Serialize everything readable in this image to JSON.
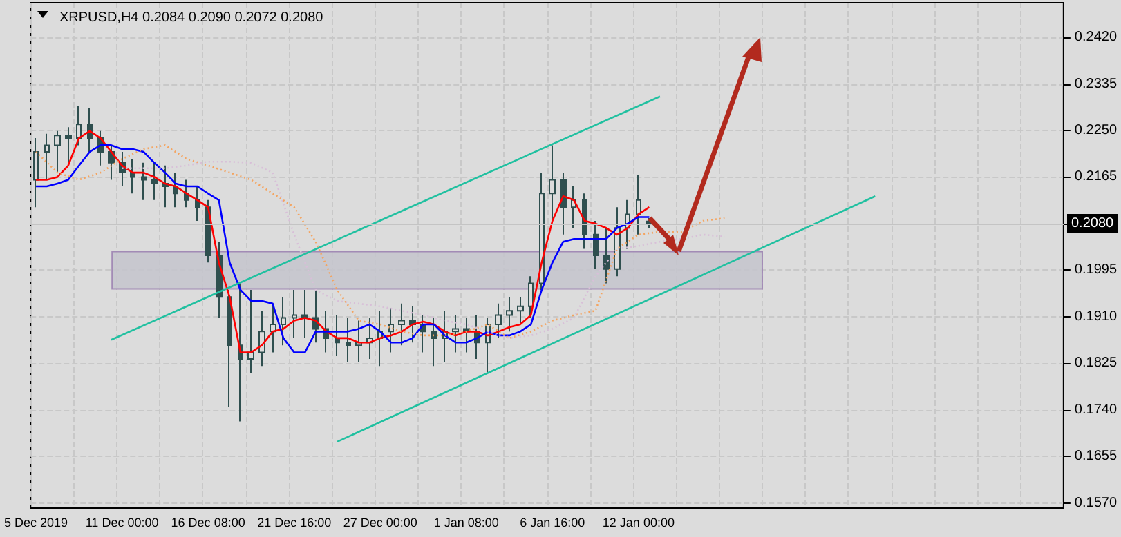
{
  "chart_data": {
    "type": "candlestick",
    "title": "XRPUSD,H4 0.2084 0.2090 0.2072 0.2080",
    "categories": [
      "5 Dec 2019",
      null,
      null,
      null,
      null,
      null,
      null,
      null,
      "11 Dec 00:00",
      null,
      null,
      null,
      null,
      null,
      null,
      null,
      "16 Dec 08:00",
      null,
      null,
      null,
      null,
      null,
      null,
      null,
      "21 Dec 16:00",
      null,
      null,
      null,
      null,
      null,
      null,
      null,
      "27 Dec 00:00",
      null,
      null,
      null,
      null,
      null,
      null,
      null,
      "1 Jan 08:00",
      null,
      null,
      null,
      null,
      null,
      null,
      null,
      "6 Jan 16:00",
      null,
      null,
      null,
      null,
      null,
      null,
      null,
      "12 Jan 00:00",
      null,
      null,
      null,
      null,
      null,
      null,
      null,
      null,
      null,
      null,
      null,
      null,
      null,
      null,
      null,
      null,
      null,
      null,
      null,
      null,
      null,
      null,
      null,
      null,
      null,
      null,
      null,
      null,
      null,
      null,
      null,
      null,
      null,
      null,
      null,
      null,
      null,
      null,
      null
    ],
    "series": [
      {
        "color": "#2f4f4f",
        "ohlc": [
          [
            0.216,
            0.2236,
            0.211,
            0.2211
          ],
          [
            0.2211,
            0.2244,
            0.216,
            0.2223
          ],
          [
            0.2223,
            0.2249,
            0.2173,
            0.2241
          ],
          [
            0.2241,
            0.2256,
            0.2186,
            0.2236
          ],
          [
            0.2236,
            0.2294,
            0.2223,
            0.2261
          ],
          [
            0.2261,
            0.2291,
            0.2211,
            0.2236
          ],
          [
            0.2236,
            0.2249,
            0.2186,
            0.2211
          ],
          [
            0.2211,
            0.2223,
            0.216,
            0.2191
          ],
          [
            0.2191,
            0.2211,
            0.2148,
            0.2173
          ],
          [
            0.2173,
            0.2198,
            0.2135,
            0.2165
          ],
          [
            0.2165,
            0.2191,
            0.2123,
            0.216
          ],
          [
            0.216,
            0.2191,
            0.2123,
            0.2153
          ],
          [
            0.2153,
            0.2186,
            0.211,
            0.2148
          ],
          [
            0.2148,
            0.2173,
            0.211,
            0.2135
          ],
          [
            0.2135,
            0.216,
            0.211,
            0.2123
          ],
          [
            0.2123,
            0.2148,
            0.2085,
            0.211
          ],
          [
            0.211,
            0.2123,
            0.2009,
            0.2022
          ],
          [
            0.2022,
            0.2047,
            0.1908,
            0.1946
          ],
          [
            0.1946,
            0.1959,
            0.1745,
            0.1858
          ],
          [
            0.1858,
            0.1971,
            0.1719,
            0.1833
          ],
          [
            0.1833,
            0.1959,
            0.1808,
            0.1845
          ],
          [
            0.1845,
            0.1921,
            0.182,
            0.1883
          ],
          [
            0.1883,
            0.1934,
            0.1845,
            0.1896
          ],
          [
            0.1896,
            0.1946,
            0.1858,
            0.1908
          ],
          [
            0.1908,
            0.1959,
            0.1871,
            0.1913
          ],
          [
            0.1913,
            0.1959,
            0.1871,
            0.1908
          ],
          [
            0.1908,
            0.1959,
            0.1863,
            0.1888
          ],
          [
            0.1888,
            0.1921,
            0.1845,
            0.1871
          ],
          [
            0.1871,
            0.1913,
            0.1838,
            0.1863
          ],
          [
            0.1863,
            0.1908,
            0.1828,
            0.1858
          ],
          [
            0.1858,
            0.1903,
            0.1828,
            0.1863
          ],
          [
            0.1863,
            0.1908,
            0.1833,
            0.1871
          ],
          [
            0.1871,
            0.1921,
            0.182,
            0.1883
          ],
          [
            0.1883,
            0.1926,
            0.1845,
            0.1896
          ],
          [
            0.1896,
            0.1934,
            0.1858,
            0.1903
          ],
          [
            0.1903,
            0.1929,
            0.1863,
            0.1896
          ],
          [
            0.1896,
            0.1913,
            0.1845,
            0.1883
          ],
          [
            0.1883,
            0.1908,
            0.182,
            0.1871
          ],
          [
            0.1871,
            0.1921,
            0.1828,
            0.1883
          ],
          [
            0.1883,
            0.1913,
            0.1845,
            0.1888
          ],
          [
            0.1888,
            0.1908,
            0.1845,
            0.1883
          ],
          [
            0.1883,
            0.1913,
            0.1833,
            0.1863
          ],
          [
            0.1863,
            0.1908,
            0.1808,
            0.1896
          ],
          [
            0.1896,
            0.1934,
            0.1871,
            0.1913
          ],
          [
            0.1913,
            0.1946,
            0.1883,
            0.1921
          ],
          [
            0.1921,
            0.1946,
            0.1896,
            0.1929
          ],
          [
            0.1929,
            0.1984,
            0.1908,
            0.1971
          ],
          [
            0.1971,
            0.2173,
            0.1959,
            0.2135
          ],
          [
            0.2135,
            0.2223,
            0.2085,
            0.216
          ],
          [
            0.216,
            0.2173,
            0.206,
            0.211
          ],
          [
            0.211,
            0.2148,
            0.2072,
            0.2123
          ],
          [
            0.2123,
            0.2135,
            0.2034,
            0.206
          ],
          [
            0.206,
            0.2085,
            0.1997,
            0.2022
          ],
          [
            0.2022,
            0.2072,
            0.1971,
            0.1997
          ],
          [
            0.1997,
            0.211,
            0.1984,
            0.2072
          ],
          [
            0.2072,
            0.2123,
            0.2034,
            0.2097
          ],
          [
            0.2097,
            0.2168,
            0.206,
            0.2123
          ],
          [
            0.2084,
            0.209,
            0.2072,
            0.208
          ],
          null,
          null,
          null,
          null,
          null,
          null,
          null,
          null,
          null,
          null,
          null,
          null,
          null,
          null,
          null,
          null,
          null,
          null,
          null,
          null,
          null,
          null,
          null,
          null,
          null,
          null,
          null,
          null,
          null,
          null,
          null,
          null,
          null,
          null,
          null,
          null,
          null,
          null
        ]
      },
      {
        "type": "line",
        "color": "#ff0000",
        "line_style": "solid",
        "values": [
          0.216,
          0.216,
          0.2165,
          0.2186,
          0.2236,
          0.2249,
          0.2236,
          0.2211,
          0.2186,
          0.2173,
          0.2173,
          0.2165,
          0.2153,
          0.2148,
          0.2135,
          0.2123,
          0.211,
          0.2009,
          0.1946,
          0.1845,
          0.1845,
          0.1858,
          0.1883,
          0.1888,
          0.1903,
          0.1908,
          0.1903,
          0.1883,
          0.1871,
          0.1871,
          0.1863,
          0.1863,
          0.1871,
          0.1876,
          0.1883,
          0.1896,
          0.1901,
          0.1896,
          0.1883,
          0.1876,
          0.1883,
          0.1883,
          0.1876,
          0.1883,
          0.1891,
          0.1896,
          0.1913,
          0.2009,
          0.2085,
          0.213,
          0.2123,
          0.2085,
          0.208,
          0.2072,
          0.206,
          0.2072,
          0.2097,
          0.211,
          null,
          null,
          null,
          null,
          null,
          null,
          null,
          null,
          null,
          null,
          null,
          null,
          null,
          null,
          null,
          null,
          null,
          null,
          null,
          null,
          null,
          null,
          null,
          null,
          null,
          null,
          null,
          null,
          null,
          null,
          null,
          null,
          null,
          null,
          null,
          null,
          null,
          null
        ]
      },
      {
        "type": "line",
        "color": "#0000ff",
        "line_style": "solid",
        "values": [
          0.2148,
          0.2148,
          0.2153,
          0.216,
          0.2186,
          0.2211,
          0.2223,
          0.2223,
          0.2216,
          0.2216,
          0.2211,
          0.2191,
          0.2173,
          0.2153,
          0.2148,
          0.2148,
          0.2135,
          0.2123,
          0.2009,
          0.1959,
          0.1939,
          0.1939,
          0.1934,
          0.1871,
          0.1845,
          0.1845,
          0.1883,
          0.1883,
          0.1883,
          0.1883,
          0.1888,
          0.1896,
          0.1883,
          0.1863,
          0.1863,
          0.1871,
          0.1896,
          0.1896,
          0.1876,
          0.1863,
          0.1863,
          0.1871,
          0.1883,
          0.1876,
          0.1876,
          0.1883,
          0.1896,
          0.1959,
          0.2009,
          0.2047,
          0.2052,
          0.2052,
          0.2052,
          0.2052,
          0.2072,
          0.208,
          0.2092,
          0.2092,
          null,
          null,
          null,
          null,
          null,
          null,
          null,
          null,
          null,
          null,
          null,
          null,
          null,
          null,
          null,
          null,
          null,
          null,
          null,
          null,
          null,
          null,
          null,
          null,
          null,
          null,
          null,
          null,
          null,
          null,
          null,
          null,
          null,
          null,
          null,
          null,
          null,
          null
        ]
      },
      {
        "type": "line",
        "color": "#f4a460",
        "line_style": "dotted",
        "values": [
          0.2211,
          null,
          0.2173,
          null,
          0.216,
          null,
          0.2173,
          null,
          0.2198,
          null,
          0.2216,
          null,
          0.2223,
          null,
          0.2198,
          null,
          0.2186,
          null,
          0.2173,
          null,
          0.216,
          null,
          0.2135,
          null,
          0.211,
          null,
          0.2047,
          null,
          0.1959,
          null,
          0.1903,
          null,
          0.1896,
          null,
          0.1883,
          null,
          0.1876,
          null,
          0.1876,
          null,
          0.1883,
          null,
          0.1896,
          null,
          0.1871,
          null,
          0.1883,
          null,
          0.1903,
          null,
          0.1913,
          null,
          0.1921,
          null,
          0.2034,
          null,
          0.206,
          null,
          0.2065,
          null,
          0.2065,
          null,
          0.2085,
          null,
          0.209,
          null,
          null,
          null,
          null,
          null,
          null,
          null,
          null,
          null,
          null,
          null,
          null,
          null,
          null,
          null,
          null,
          null,
          null,
          null,
          null,
          null,
          null,
          null,
          null,
          null,
          null,
          null,
          null,
          null,
          null,
          null
        ]
      },
      {
        "type": "line",
        "color": "#d8bfd8",
        "line_style": "dotted",
        "values": [
          null,
          null,
          null,
          null,
          null,
          null,
          null,
          null,
          0.2181,
          null,
          0.2181,
          null,
          0.2181,
          null,
          0.2186,
          null,
          0.2193,
          null,
          0.2193,
          null,
          0.2191,
          null,
          0.2173,
          null,
          0.206,
          null,
          0.1959,
          null,
          0.1939,
          null,
          0.1934,
          null,
          0.1929,
          null,
          0.1921,
          null,
          0.1913,
          null,
          0.1903,
          null,
          0.1896,
          null,
          0.1883,
          null,
          0.1871,
          null,
          0.1876,
          null,
          0.1888,
          null,
          0.1908,
          null,
          0.1984,
          null,
          0.2034,
          null,
          0.2039,
          null,
          0.2047,
          null,
          0.2052,
          null,
          0.206,
          null,
          0.2056,
          null,
          null,
          null,
          null,
          null,
          null,
          null,
          null,
          null,
          null,
          null,
          null,
          null,
          null,
          null,
          null,
          null,
          null,
          null,
          null,
          null,
          null,
          null,
          null,
          null,
          null,
          null,
          null,
          null,
          null,
          null
        ]
      },
      {
        "type": "line",
        "color": "#20c0a0",
        "line_style": "solid",
        "values": [
          null,
          null,
          null,
          null,
          null,
          null,
          null,
          0.1868,
          null,
          null,
          null,
          null,
          null,
          null,
          null,
          null,
          null,
          null,
          null,
          null,
          null,
          null,
          null,
          null,
          null,
          null,
          null,
          null,
          null,
          null,
          null,
          null,
          null,
          null,
          null,
          null,
          null,
          null,
          null,
          null,
          null,
          null,
          null,
          null,
          null,
          null,
          null,
          null,
          null,
          null,
          null,
          null,
          null,
          null,
          null,
          null,
          null,
          null,
          0.2312,
          null,
          null,
          null,
          null,
          null,
          null,
          null,
          null,
          null,
          null,
          null,
          null,
          null,
          null,
          null,
          null,
          null,
          null,
          null,
          null,
          null,
          null,
          null,
          null,
          null,
          null,
          null,
          null,
          null,
          null,
          null,
          null,
          null,
          null,
          null,
          null,
          null
        ]
      },
      {
        "type": "line",
        "color": "#20c0a0",
        "line_style": "solid",
        "values": [
          null,
          null,
          null,
          null,
          null,
          null,
          null,
          null,
          null,
          null,
          null,
          null,
          null,
          null,
          null,
          null,
          null,
          null,
          null,
          null,
          null,
          null,
          null,
          null,
          null,
          null,
          null,
          null,
          0.1682,
          null,
          null,
          null,
          null,
          null,
          null,
          null,
          null,
          null,
          null,
          null,
          null,
          null,
          null,
          null,
          null,
          null,
          null,
          null,
          null,
          null,
          null,
          null,
          null,
          null,
          null,
          null,
          null,
          null,
          null,
          null,
          null,
          null,
          null,
          null,
          null,
          null,
          null,
          null,
          null,
          null,
          null,
          null,
          null,
          null,
          null,
          null,
          null,
          null,
          0.213,
          null,
          null,
          null,
          null,
          null,
          null,
          null,
          null,
          null,
          null,
          null,
          null,
          null,
          null,
          null,
          null,
          null
        ]
      }
    ],
    "ylim": [
      0.1561,
      0.2483
    ],
    "yticks": [
      {
        "value": 0.157,
        "label": "0.1570"
      },
      {
        "value": 0.1655,
        "label": "0.1655"
      },
      {
        "value": 0.174,
        "label": "0.1740"
      },
      {
        "value": 0.1825,
        "label": "0.1825"
      },
      {
        "value": 0.191,
        "label": "0.1910"
      },
      {
        "value": 0.1995,
        "label": "0.1995"
      },
      {
        "value": 0.208,
        "label": null
      },
      {
        "value": 0.2165,
        "label": "0.2165"
      },
      {
        "value": 0.225,
        "label": "0.2250"
      },
      {
        "value": 0.2335,
        "label": "0.2335"
      },
      {
        "value": 0.242,
        "label": "0.2420"
      }
    ],
    "ref_lines": [
      {
        "axis": "y",
        "value": 0.208,
        "label": "0.2080",
        "color": "#c4c4c4"
      }
    ],
    "bands": [
      {
        "axis": "y",
        "from": 0.1961,
        "to": 0.2029,
        "color": "#c4c4cc"
      }
    ],
    "grid": true,
    "marker": "none"
  }
}
